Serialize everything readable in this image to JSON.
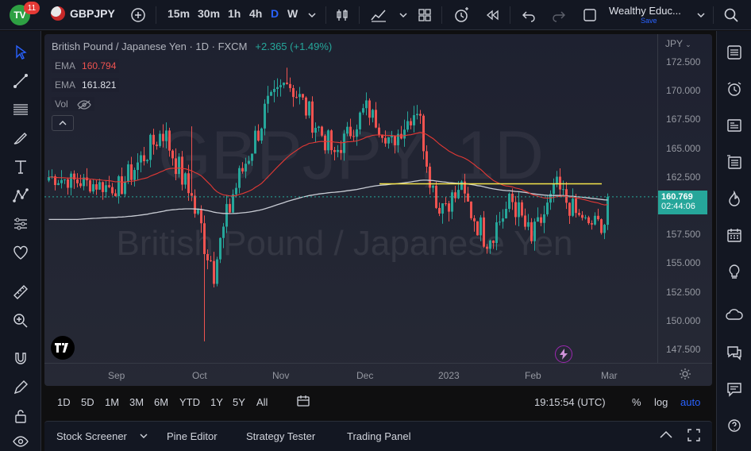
{
  "topbar": {
    "notification_count": "11",
    "logo_text": "TV",
    "symbol": "GBPJPY",
    "intervals": [
      "15m",
      "30m",
      "1h",
      "4h",
      "D",
      "W"
    ],
    "active_interval": "D",
    "layout_name": "Wealthy Educ...",
    "layout_save": "Save"
  },
  "legend": {
    "title": "British Pound / Japanese Yen · 1D · FXCM",
    "change": "+2.365 (+1.49%)",
    "ema1_label": "EMA",
    "ema1_value": "160.794",
    "ema2_label": "EMA",
    "ema2_value": "161.821",
    "vol_label": "Vol"
  },
  "watermark": {
    "symbol": "GBPJPY, 1D",
    "name": "British Pound / Japanese Yen"
  },
  "price_axis": {
    "currency": "JPY",
    "ticks": [
      "172.500",
      "170.000",
      "167.500",
      "165.000",
      "162.500",
      "160.000",
      "157.500",
      "155.000",
      "152.500",
      "150.000",
      "147.500"
    ],
    "current_price": "160.769",
    "countdown": "02:44:06"
  },
  "time_axis": {
    "ticks": [
      "Sep",
      "Oct",
      "Nov",
      "Dec",
      "2023",
      "Feb",
      "Mar"
    ]
  },
  "range_bar": {
    "ranges": [
      "1D",
      "5D",
      "1M",
      "3M",
      "6M",
      "YTD",
      "1Y",
      "5Y",
      "All"
    ],
    "clock": "19:15:54 (UTC)",
    "percent": "%",
    "log": "log",
    "auto": "auto"
  },
  "bottom_panel": {
    "tabs": [
      "Stock Screener",
      "Pine Editor",
      "Strategy Tester",
      "Trading Panel"
    ]
  },
  "colors": {
    "up": "#26a69a",
    "down": "#ef5350",
    "ema_fast": "#e53935",
    "ema_slow": "#b2b5be",
    "horizontal_line": "#f5e44a",
    "accent": "#2962ff"
  },
  "chart_data": {
    "type": "candlestick",
    "symbol": "GBPJPY",
    "interval": "1D",
    "ylim": [
      146.5,
      174.0
    ],
    "x": [
      "Sep",
      "Oct",
      "Nov",
      "Dec",
      "2023",
      "Feb",
      "Mar"
    ],
    "last_price": 160.769,
    "ema_fast_last": 160.794,
    "ema_slow_last": 161.821,
    "horizontal_line": 161.9,
    "segments": [
      {
        "from_idx": 0,
        "to_idx": 22,
        "start": 162.5,
        "end": 161.5,
        "vol": 1.0
      },
      {
        "from_idx": 22,
        "to_idx": 36,
        "start": 161.5,
        "end": 166.5,
        "vol": 1.4
      },
      {
        "from_idx": 36,
        "to_idx": 45,
        "start": 166.5,
        "end": 160.5,
        "vol": 1.6
      },
      {
        "from_idx": 45,
        "to_idx": 52,
        "start": 160.5,
        "end": 154.5,
        "vol": 2.2
      },
      {
        "from_idx": 52,
        "to_idx": 58,
        "start": 154.5,
        "end": 161.0,
        "vol": 1.8
      },
      {
        "from_idx": 58,
        "to_idx": 68,
        "start": 161.0,
        "end": 168.0,
        "vol": 1.6
      },
      {
        "from_idx": 68,
        "to_idx": 75,
        "start": 168.0,
        "end": 171.0,
        "vol": 1.5
      },
      {
        "from_idx": 75,
        "to_idx": 90,
        "start": 171.0,
        "end": 164.5,
        "vol": 1.5
      },
      {
        "from_idx": 90,
        "to_idx": 100,
        "start": 164.5,
        "end": 168.5,
        "vol": 1.2
      },
      {
        "from_idx": 100,
        "to_idx": 108,
        "start": 168.5,
        "end": 165.5,
        "vol": 1.1
      },
      {
        "from_idx": 108,
        "to_idx": 116,
        "start": 165.5,
        "end": 168.5,
        "vol": 1.1
      },
      {
        "from_idx": 116,
        "to_idx": 122,
        "start": 168.5,
        "end": 160.0,
        "vol": 1.6
      },
      {
        "from_idx": 122,
        "to_idx": 130,
        "start": 160.0,
        "end": 161.0,
        "vol": 1.3
      },
      {
        "from_idx": 130,
        "to_idx": 138,
        "start": 161.0,
        "end": 157.0,
        "vol": 1.6
      },
      {
        "from_idx": 138,
        "to_idx": 146,
        "start": 157.0,
        "end": 160.5,
        "vol": 1.5
      },
      {
        "from_idx": 146,
        "to_idx": 152,
        "start": 160.5,
        "end": 157.0,
        "vol": 1.5
      },
      {
        "from_idx": 152,
        "to_idx": 160,
        "start": 157.0,
        "end": 161.5,
        "vol": 1.4
      },
      {
        "from_idx": 160,
        "to_idx": 168,
        "start": 161.5,
        "end": 158.5,
        "vol": 1.3
      },
      {
        "from_idx": 168,
        "to_idx": 175,
        "start": 158.5,
        "end": 158.4,
        "vol": 1.1
      },
      {
        "from_idx": 175,
        "to_idx": 176,
        "start": 158.4,
        "end": 160.769,
        "vol": 1.2
      }
    ],
    "candle_count": 177
  }
}
